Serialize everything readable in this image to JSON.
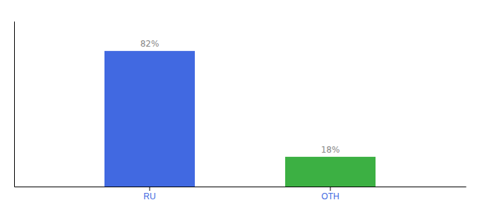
{
  "chart_data": {
    "type": "bar",
    "categories": [
      "RU",
      "OTH"
    ],
    "values": [
      82,
      18
    ],
    "value_labels": [
      "82%",
      "18%"
    ],
    "colors": [
      "#4169e1",
      "#3cb043"
    ],
    "ylim": [
      0,
      100
    ],
    "data_labels": true,
    "tick_labels": "x",
    "grid": false
  }
}
